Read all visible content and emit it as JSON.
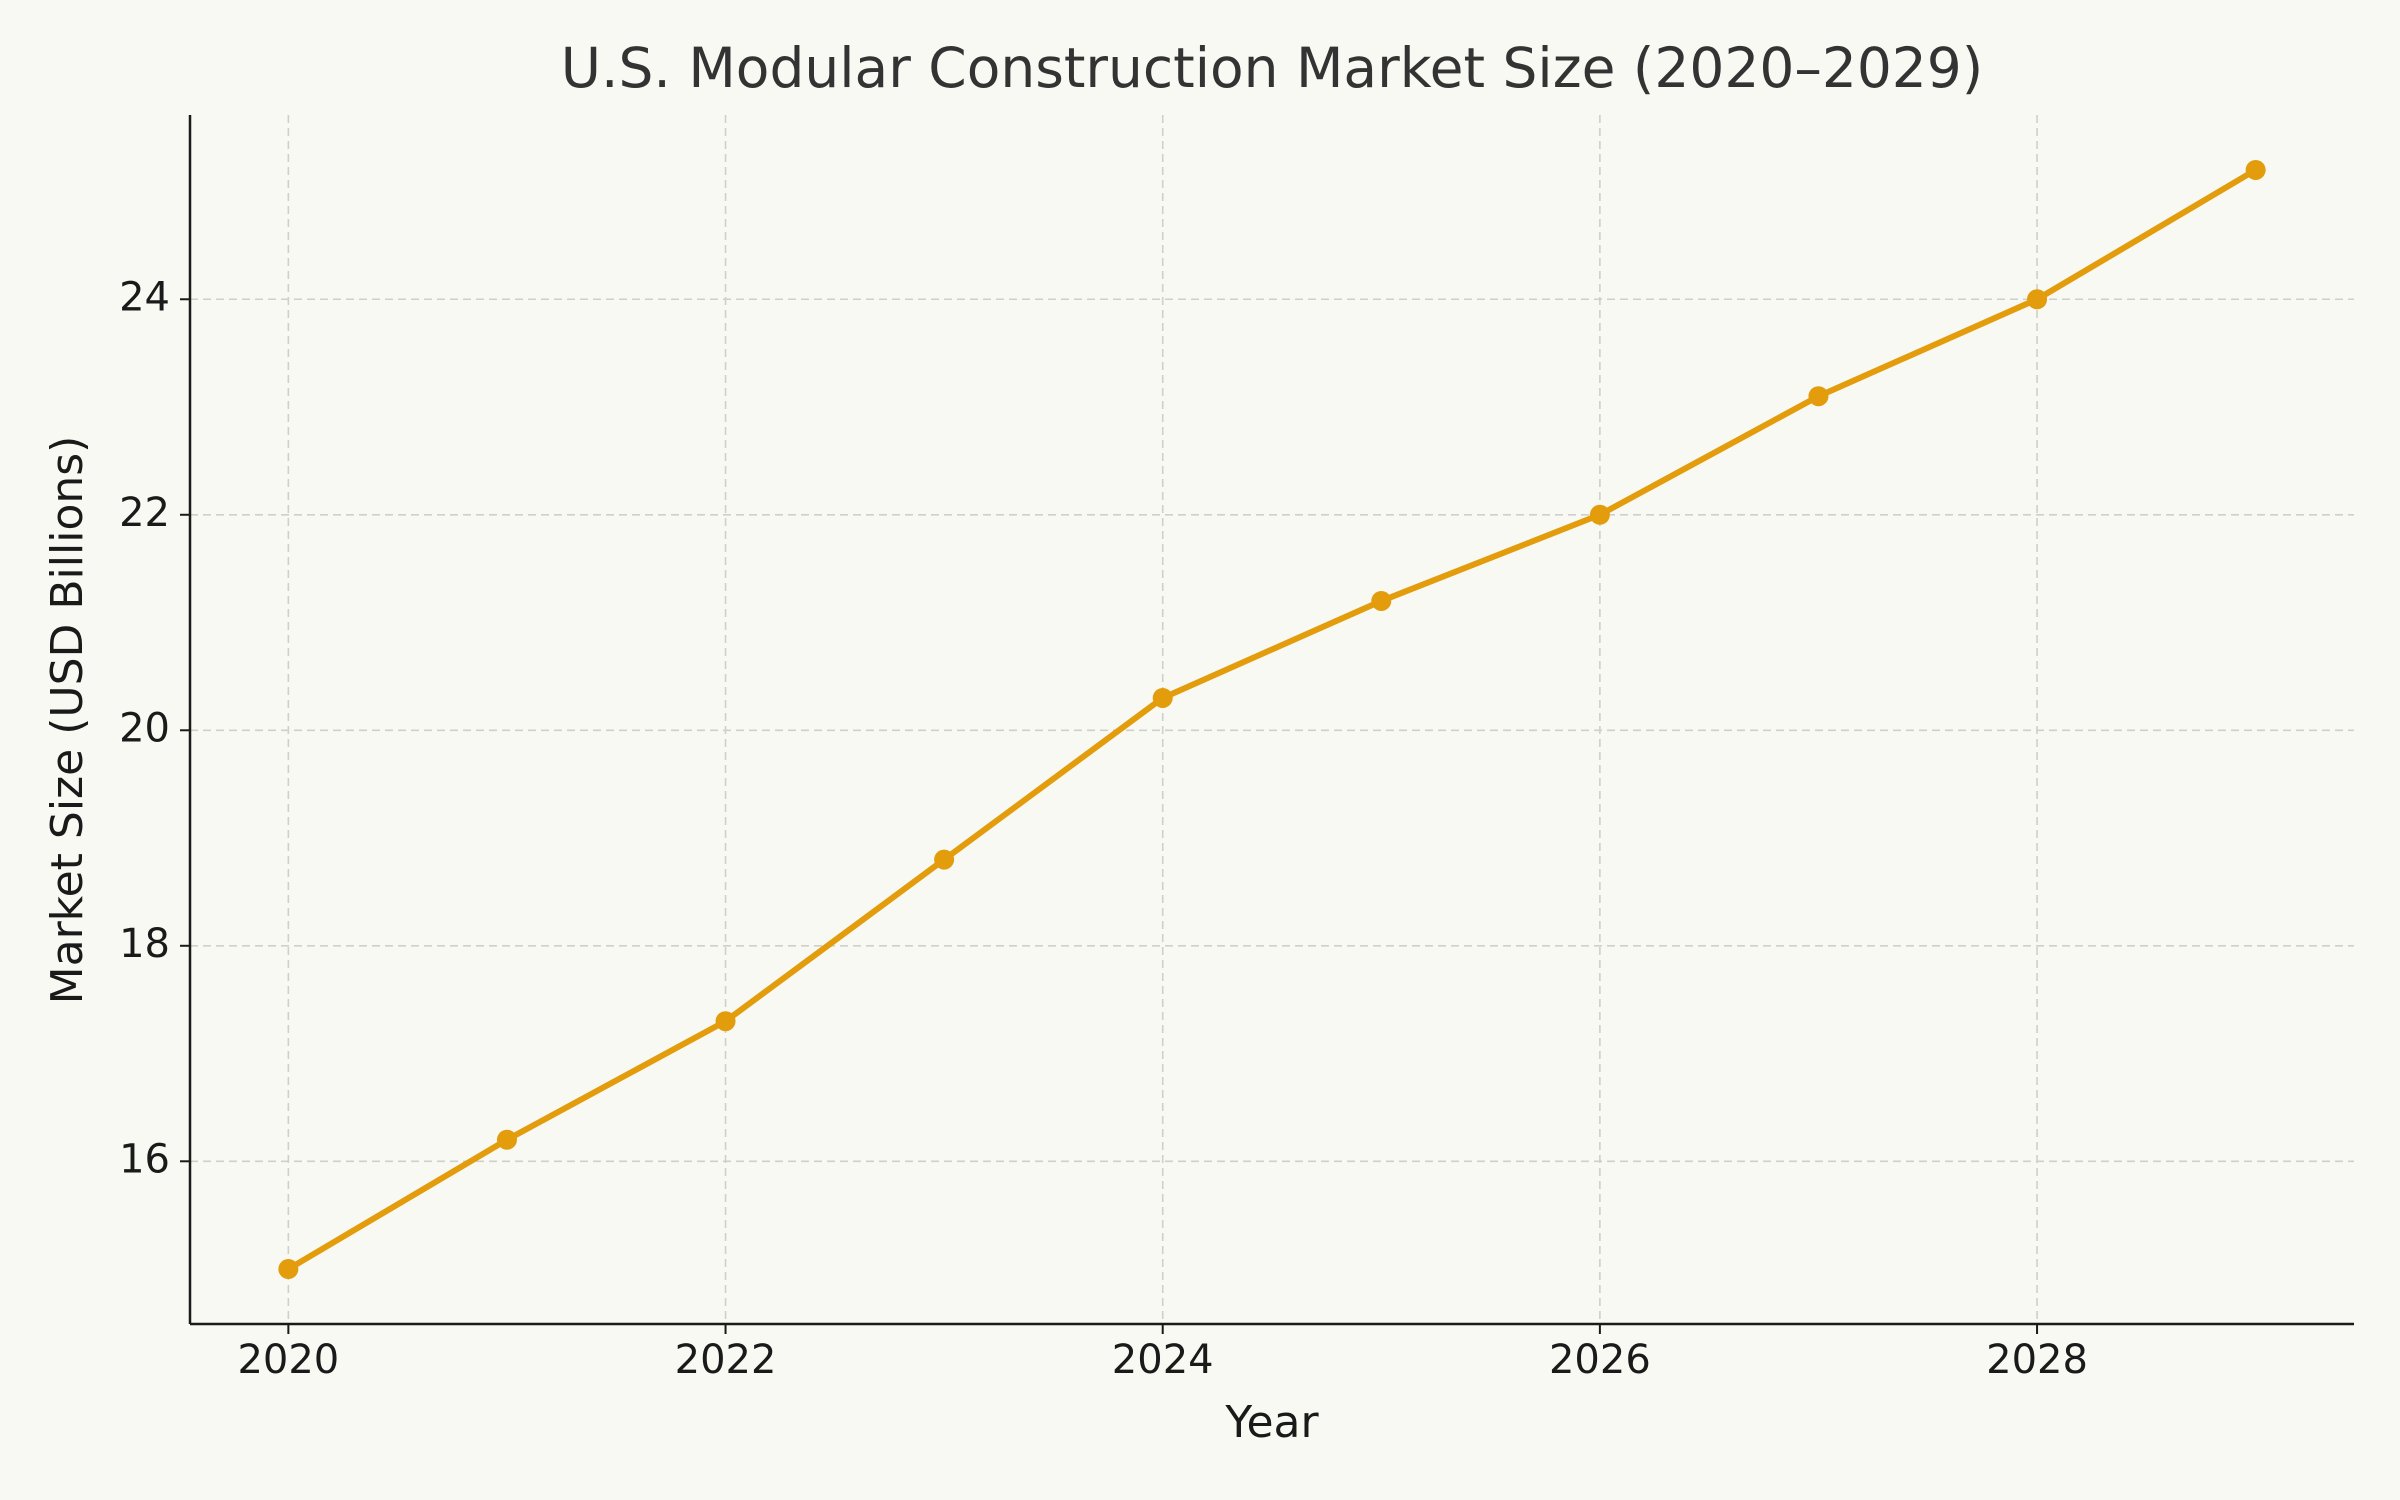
{
  "chart_data": {
    "type": "line",
    "title": "U.S. Modular Construction Market Size (2020–2029)",
    "x_label": "Year",
    "y_label": "Market Size (USD Billions)",
    "x": [
      2020,
      2021,
      2022,
      2023,
      2024,
      2025,
      2026,
      2027,
      2028,
      2029
    ],
    "series": [
      {
        "name": "Market Size",
        "color": "#e39c0c",
        "values": [
          15.0,
          16.2,
          17.3,
          18.8,
          20.3,
          21.2,
          22.0,
          23.1,
          24.0,
          25.2
        ]
      }
    ],
    "xlim": [
      2019.55,
      2029.45
    ],
    "ylim": [
      14.49,
      25.71
    ],
    "xticks": [
      2020,
      2022,
      2024,
      2026,
      2028
    ],
    "yticks": [
      16,
      18,
      20,
      22,
      24
    ],
    "grid": true,
    "markers": true
  }
}
